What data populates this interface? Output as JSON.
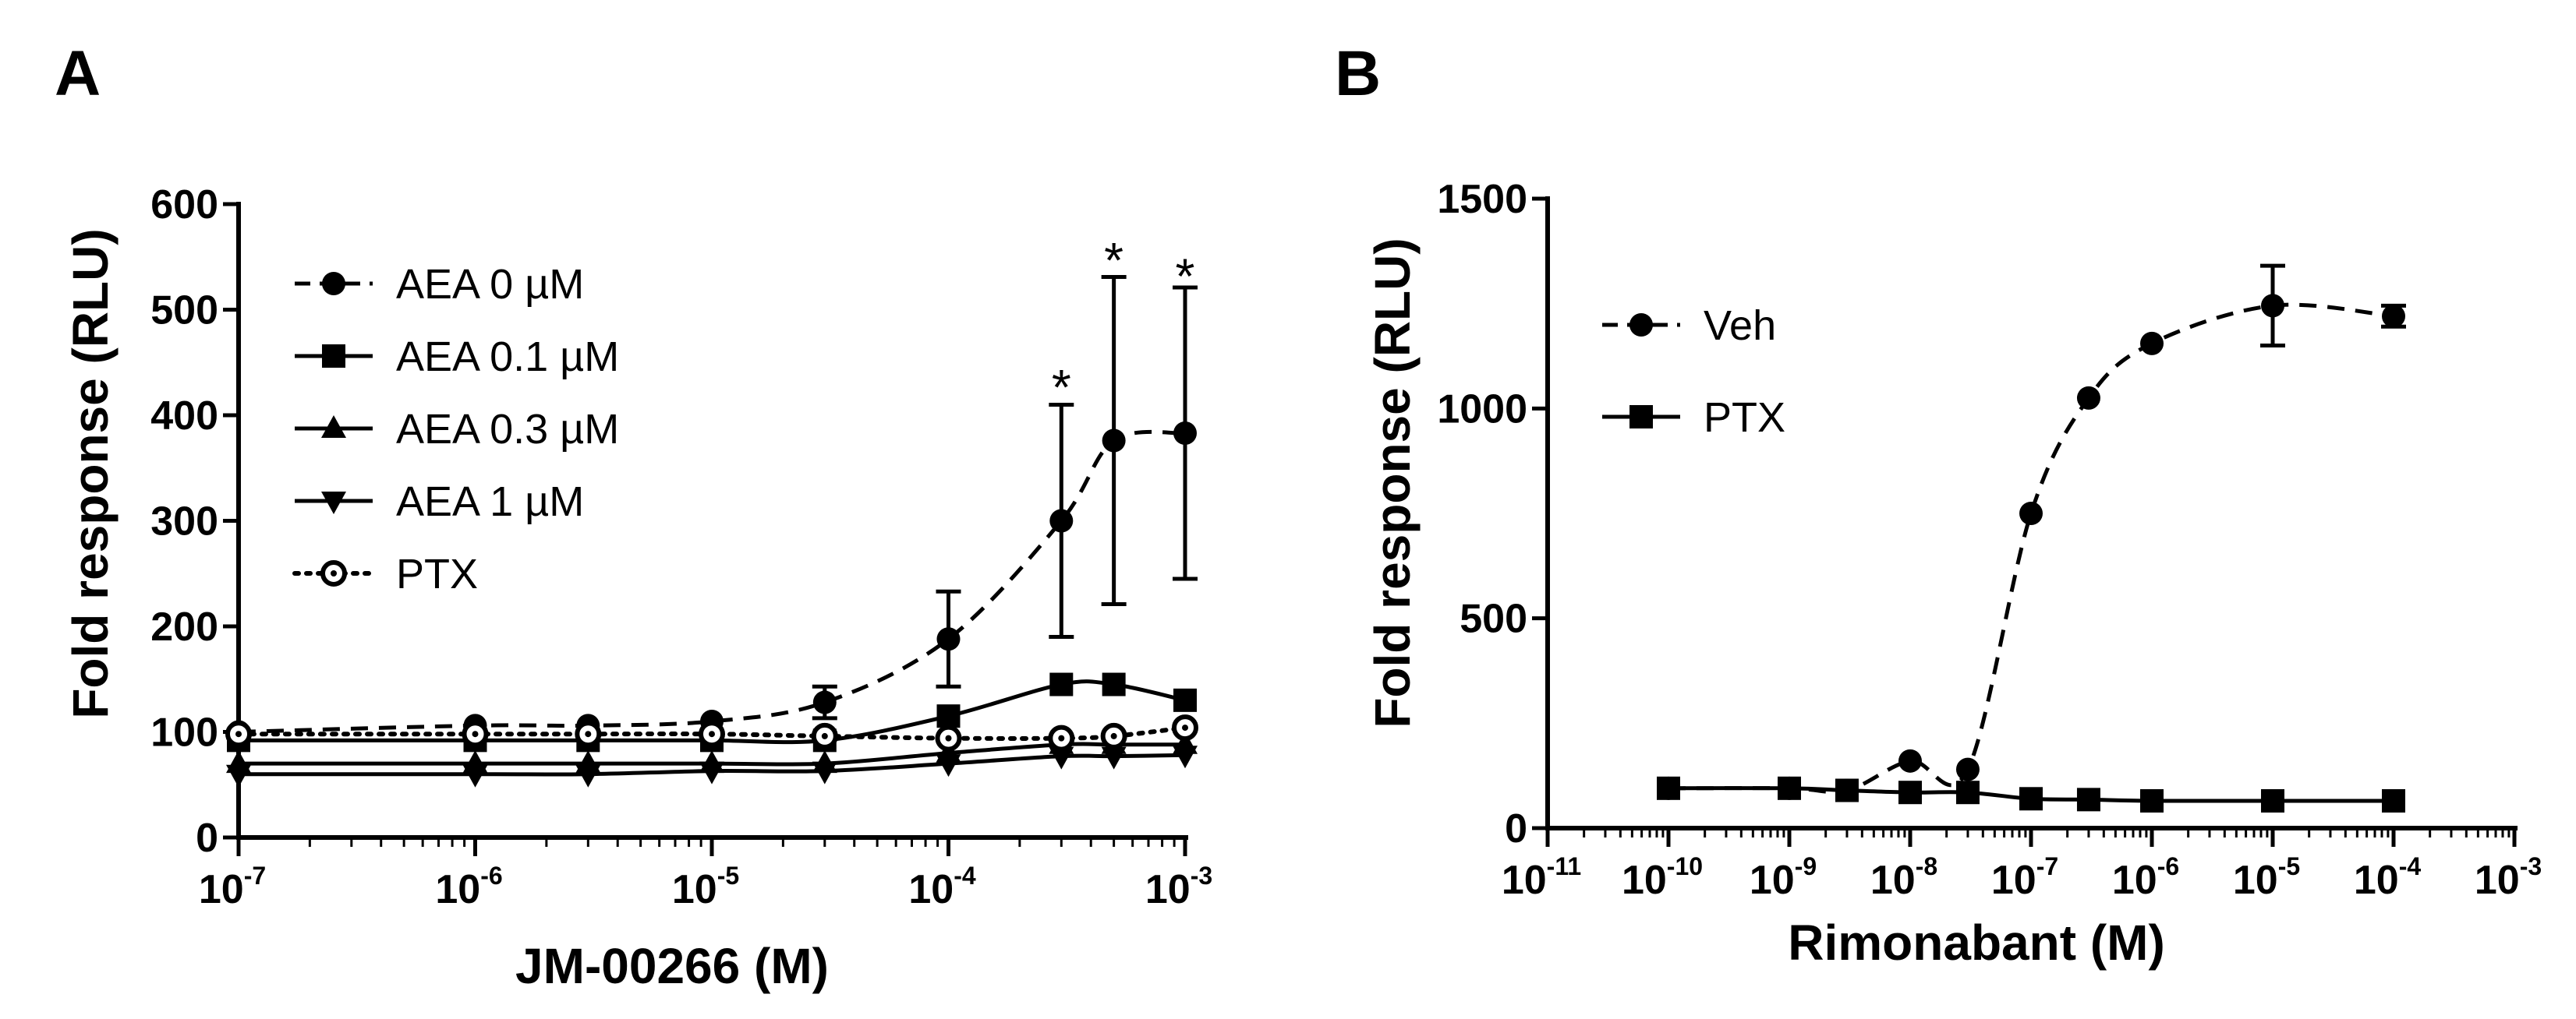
{
  "chart_data": [
    {
      "panel": "A",
      "type": "line",
      "xlabel": "JM-00266 (M)",
      "ylabel": "Fold response (RLU)",
      "xscale": "log",
      "xlim": [
        1e-07,
        0.001
      ],
      "ylim": [
        0,
        600
      ],
      "yticks": [
        0,
        100,
        200,
        300,
        400,
        500,
        600
      ],
      "xtick_exponents": [
        "-7",
        "-6",
        "-5",
        "-4",
        "-3"
      ],
      "legend_position": "top-left",
      "series": [
        {
          "name": "AEA 0 µM",
          "marker": "circle",
          "dash": "dashed",
          "x": [
            1e-07,
            1e-06,
            3e-06,
            1e-05,
            3e-05,
            0.0001,
            0.0003,
            0.0005,
            0.001
          ],
          "y": [
            100,
            106,
            106,
            110,
            128,
            188,
            300,
            376,
            383
          ],
          "err": [
            0,
            0,
            0,
            0,
            15,
            45,
            110,
            155,
            138
          ]
        },
        {
          "name": "AEA 0.1 µM",
          "marker": "square",
          "dash": "solid",
          "x": [
            1e-07,
            1e-06,
            3e-06,
            1e-05,
            3e-05,
            0.0001,
            0.0003,
            0.0005,
            0.001
          ],
          "y": [
            92,
            92,
            92,
            92,
            92,
            115,
            145,
            145,
            130
          ],
          "err": [
            0,
            0,
            0,
            0,
            0,
            0,
            0,
            0,
            0
          ]
        },
        {
          "name": "AEA 0.3 µM",
          "marker": "triangle-up",
          "dash": "solid",
          "x": [
            1e-07,
            1e-06,
            3e-06,
            1e-05,
            3e-05,
            0.0001,
            0.0003,
            0.0005,
            0.001
          ],
          "y": [
            70,
            70,
            70,
            70,
            70,
            80,
            88,
            88,
            88
          ],
          "err": [
            0,
            0,
            0,
            0,
            0,
            0,
            0,
            0,
            0
          ]
        },
        {
          "name": "AEA 1 µM",
          "marker": "triangle-down",
          "dash": "solid",
          "x": [
            1e-07,
            1e-06,
            3e-06,
            1e-05,
            3e-05,
            0.0001,
            0.0003,
            0.0005,
            0.001
          ],
          "y": [
            60,
            60,
            60,
            63,
            63,
            70,
            77,
            77,
            78
          ],
          "err": [
            0,
            0,
            0,
            0,
            0,
            0,
            0,
            0,
            0
          ]
        },
        {
          "name": "PTX",
          "marker": "open-circle",
          "dash": "dotted",
          "x": [
            1e-07,
            1e-06,
            3e-06,
            1e-05,
            3e-05,
            0.0001,
            0.0003,
            0.0005,
            0.001
          ],
          "y": [
            98,
            98,
            98,
            98,
            96,
            94,
            94,
            96,
            104
          ],
          "err": [
            0,
            0,
            0,
            0,
            0,
            0,
            0,
            0,
            0
          ]
        }
      ],
      "annotations": [
        {
          "text": "*",
          "x": 0.0003,
          "y": 440
        },
        {
          "text": "*",
          "x": 0.0005,
          "y": 560
        },
        {
          "text": "*",
          "x": 0.001,
          "y": 545
        }
      ]
    },
    {
      "panel": "B",
      "type": "line",
      "xlabel": "Rimonabant (M)",
      "ylabel": "Fold response (RLU)",
      "xscale": "log",
      "xlim": [
        1e-11,
        0.001
      ],
      "ylim": [
        0,
        1500
      ],
      "yticks": [
        0,
        500,
        1000,
        1500
      ],
      "xtick_exponents": [
        "-11",
        "-10",
        "-9",
        "-8",
        "-7",
        "-6",
        "-5",
        "-4",
        "-3"
      ],
      "legend_position": "top-left",
      "series": [
        {
          "name": "Veh",
          "marker": "circle",
          "dash": "dashed",
          "x": [
            1e-10,
            1e-09,
            3e-09,
            1e-08,
            3e-08,
            1e-07,
            3e-07,
            1e-06,
            1e-05,
            0.0001
          ],
          "y": [
            95,
            95,
            90,
            160,
            140,
            750,
            1025,
            1155,
            1245,
            1220
          ],
          "err": [
            0,
            0,
            0,
            0,
            0,
            0,
            0,
            0,
            95,
            25
          ]
        },
        {
          "name": "PTX",
          "marker": "square",
          "dash": "solid",
          "x": [
            1e-10,
            1e-09,
            3e-09,
            1e-08,
            3e-08,
            1e-07,
            3e-07,
            1e-06,
            1e-05,
            0.0001
          ],
          "y": [
            95,
            95,
            90,
            85,
            85,
            70,
            68,
            65,
            65,
            65
          ],
          "err": [
            0,
            0,
            0,
            0,
            0,
            0,
            0,
            0,
            0,
            0
          ]
        }
      ],
      "annotations": []
    }
  ]
}
